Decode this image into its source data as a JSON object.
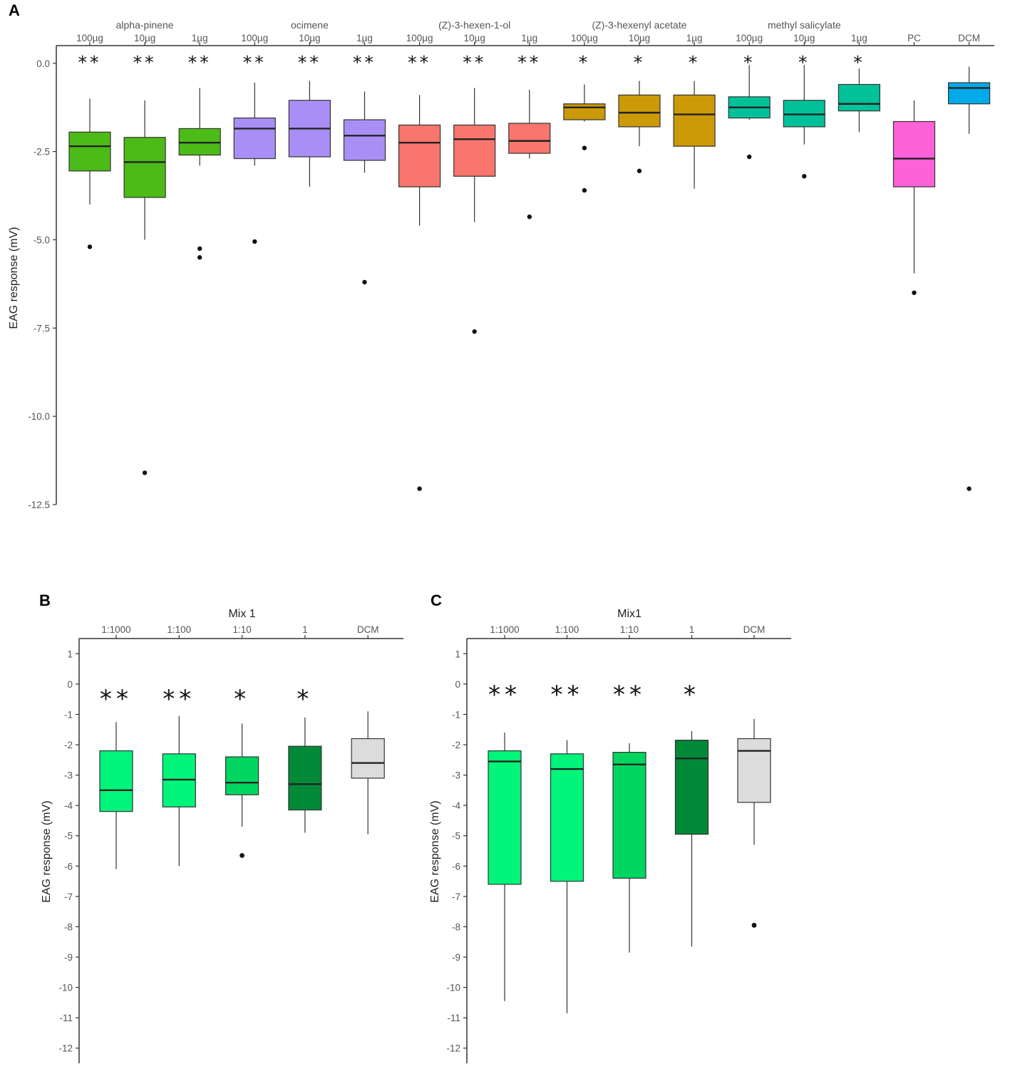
{
  "chart_data": [
    {
      "panel": "A",
      "type": "box",
      "ylabel": "EAG response (mV)",
      "ylim": [
        -12.5,
        0.5
      ],
      "yticks": [
        0.0,
        -2.5,
        -5.0,
        -7.5,
        -10.0,
        -12.5
      ],
      "ytick_labels": [
        "0.0",
        "-2.5",
        "-5.0",
        "-7.5",
        "-10.0",
        "-12.5"
      ],
      "groups": [
        {
          "name": "alpha-pinene",
          "start": 0,
          "end": 2
        },
        {
          "name": "ocimene",
          "start": 3,
          "end": 5
        },
        {
          "name": "(Z)-3-hexen-1-ol",
          "start": 6,
          "end": 8
        },
        {
          "name": "(Z)-3-hexenyl acetate",
          "start": 9,
          "end": 11
        },
        {
          "name": "methyl salicylate",
          "start": 12,
          "end": 14
        }
      ],
      "boxes": [
        {
          "label": "100µg",
          "color": "#4cbb17",
          "q1": -3.05,
          "median": -2.35,
          "q3": -1.95,
          "low": -4.0,
          "high": -1.0,
          "outliers": [
            -5.2
          ],
          "sig": "**"
        },
        {
          "label": "10µg",
          "color": "#4cbb17",
          "q1": -3.8,
          "median": -2.8,
          "q3": -2.1,
          "low": -5.0,
          "high": -1.05,
          "outliers": [
            -11.6
          ],
          "sig": "**"
        },
        {
          "label": "1µg",
          "color": "#4cbb17",
          "q1": -2.6,
          "median": -2.25,
          "q3": -1.85,
          "low": -2.9,
          "high": -0.7,
          "outliers": [
            -5.25,
            -5.5
          ],
          "sig": "**"
        },
        {
          "label": "100µg",
          "color": "#a98ff5",
          "q1": -2.7,
          "median": -1.85,
          "q3": -1.55,
          "low": -2.9,
          "high": -0.55,
          "outliers": [
            -5.05
          ],
          "sig": "**"
        },
        {
          "label": "10µg",
          "color": "#a98ff5",
          "q1": -2.65,
          "median": -1.85,
          "q3": -1.05,
          "low": -3.5,
          "high": -0.5,
          "outliers": [],
          "sig": "**"
        },
        {
          "label": "1µg",
          "color": "#a98ff5",
          "q1": -2.75,
          "median": -2.05,
          "q3": -1.6,
          "low": -3.1,
          "high": -0.8,
          "outliers": [
            -6.2
          ],
          "sig": "**"
        },
        {
          "label": "100µg",
          "color": "#f8766d",
          "q1": -3.5,
          "median": -2.25,
          "q3": -1.75,
          "low": -4.6,
          "high": -0.9,
          "outliers": [
            -12.05
          ],
          "sig": "**"
        },
        {
          "label": "10µg",
          "color": "#f8766d",
          "q1": -3.2,
          "median": -2.15,
          "q3": -1.75,
          "low": -4.5,
          "high": -0.7,
          "outliers": [
            -7.6
          ],
          "sig": "**"
        },
        {
          "label": "1µg",
          "color": "#f8766d",
          "q1": -2.55,
          "median": -2.2,
          "q3": -1.7,
          "low": -2.7,
          "high": -0.75,
          "outliers": [
            -4.35
          ],
          "sig": "**"
        },
        {
          "label": "100µg",
          "color": "#cc9a06",
          "q1": -1.6,
          "median": -1.25,
          "q3": -1.15,
          "low": -1.65,
          "high": -0.6,
          "outliers": [
            -2.4,
            -3.6
          ],
          "sig": "*"
        },
        {
          "label": "10µg",
          "color": "#cc9a06",
          "q1": -1.8,
          "median": -1.4,
          "q3": -0.9,
          "low": -2.35,
          "high": -0.5,
          "outliers": [
            -3.05
          ],
          "sig": "*"
        },
        {
          "label": "1µg",
          "color": "#cc9a06",
          "q1": -2.35,
          "median": -1.45,
          "q3": -0.9,
          "low": -3.55,
          "high": -0.5,
          "outliers": [],
          "sig": "*"
        },
        {
          "label": "100µg",
          "color": "#00c19a",
          "q1": -1.55,
          "median": -1.25,
          "q3": -0.95,
          "low": -1.6,
          "high": -0.05,
          "outliers": [
            -2.65
          ],
          "sig": "*"
        },
        {
          "label": "10µg",
          "color": "#00c19a",
          "q1": -1.8,
          "median": -1.45,
          "q3": -1.05,
          "low": -2.3,
          "high": -0.05,
          "outliers": [
            -3.2
          ],
          "sig": "*"
        },
        {
          "label": "1µg",
          "color": "#00c19a",
          "q1": -1.35,
          "median": -1.15,
          "q3": -0.6,
          "low": -1.95,
          "high": -0.15,
          "outliers": [],
          "sig": "*"
        },
        {
          "label": "PC",
          "color": "#ff61d8",
          "q1": -3.5,
          "median": -2.7,
          "q3": -1.65,
          "low": -5.95,
          "high": -1.05,
          "outliers": [
            -6.5
          ],
          "sig": ""
        },
        {
          "label": "DCM",
          "color": "#00a9e8",
          "q1": -1.15,
          "median": -0.7,
          "q3": -0.55,
          "low": -2.0,
          "high": -0.1,
          "outliers": [
            -12.05
          ],
          "sig": ""
        }
      ]
    },
    {
      "panel": "B",
      "type": "box",
      "title": "Mix 1",
      "ylabel": "EAG response (mV)",
      "ylim": [
        -12.5,
        1.5
      ],
      "yticks": [
        1,
        0,
        -1,
        -2,
        -3,
        -4,
        -5,
        -6,
        -7,
        -8,
        -9,
        -10,
        -11,
        -12
      ],
      "ytick_labels": [
        "1",
        "0",
        "-1",
        "-2",
        "-3",
        "-4",
        "-5",
        "-6",
        "-7",
        "-8",
        "-9",
        "-10",
        "-11",
        "-12"
      ],
      "boxes": [
        {
          "label": "1:1000",
          "color": "#00f57a",
          "q1": -4.2,
          "median": -3.5,
          "q3": -2.2,
          "low": -6.1,
          "high": -1.25,
          "outliers": [],
          "sig": "**"
        },
        {
          "label": "1:100",
          "color": "#00f57a",
          "q1": -4.05,
          "median": -3.15,
          "q3": -2.3,
          "low": -6.0,
          "high": -1.05,
          "outliers": [],
          "sig": "**"
        },
        {
          "label": "1:10",
          "color": "#00d561",
          "q1": -3.65,
          "median": -3.25,
          "q3": -2.4,
          "low": -4.7,
          "high": -1.3,
          "outliers": [
            -5.65
          ],
          "sig": "*"
        },
        {
          "label": "1",
          "color": "#008a38",
          "q1": -4.15,
          "median": -3.3,
          "q3": -2.05,
          "low": -4.9,
          "high": -1.1,
          "outliers": [],
          "sig": "*"
        },
        {
          "label": "DCM",
          "color": "#dcdcdc",
          "q1": -3.1,
          "median": -2.6,
          "q3": -1.8,
          "low": -4.95,
          "high": -0.9,
          "outliers": [],
          "sig": ""
        }
      ]
    },
    {
      "panel": "C",
      "type": "box",
      "title": "Mix1",
      "ylabel": "EAG response (mV)",
      "ylim": [
        -12.5,
        1.5
      ],
      "yticks": [
        1,
        0,
        -1,
        -2,
        -3,
        -4,
        -5,
        -6,
        -7,
        -8,
        -9,
        -10,
        -11,
        -12
      ],
      "ytick_labels": [
        "1",
        "0",
        "-1",
        "-2",
        "-3",
        "-4",
        "-5",
        "-6",
        "-7",
        "-8",
        "-9",
        "-10",
        "-11",
        "-12"
      ],
      "boxes": [
        {
          "label": "1:1000",
          "color": "#00f57a",
          "q1": -6.6,
          "median": -2.55,
          "q3": -2.2,
          "low": -10.45,
          "high": -1.6,
          "outliers": [],
          "sig": "**"
        },
        {
          "label": "1:100",
          "color": "#00f57a",
          "q1": -6.5,
          "median": -2.8,
          "q3": -2.3,
          "low": -10.85,
          "high": -1.85,
          "outliers": [],
          "sig": "**"
        },
        {
          "label": "1:10",
          "color": "#00d561",
          "q1": -6.4,
          "median": -2.65,
          "q3": -2.25,
          "low": -8.85,
          "high": -1.95,
          "outliers": [],
          "sig": "**"
        },
        {
          "label": "1",
          "color": "#008a38",
          "q1": -4.95,
          "median": -2.45,
          "q3": -1.85,
          "low": -8.65,
          "high": -1.55,
          "outliers": [],
          "sig": "*"
        },
        {
          "label": "DCM",
          "color": "#dcdcdc",
          "q1": -3.9,
          "median": -2.2,
          "q3": -1.8,
          "low": -5.3,
          "high": -1.15,
          "outliers": [
            -7.95
          ],
          "sig": ""
        }
      ]
    }
  ]
}
